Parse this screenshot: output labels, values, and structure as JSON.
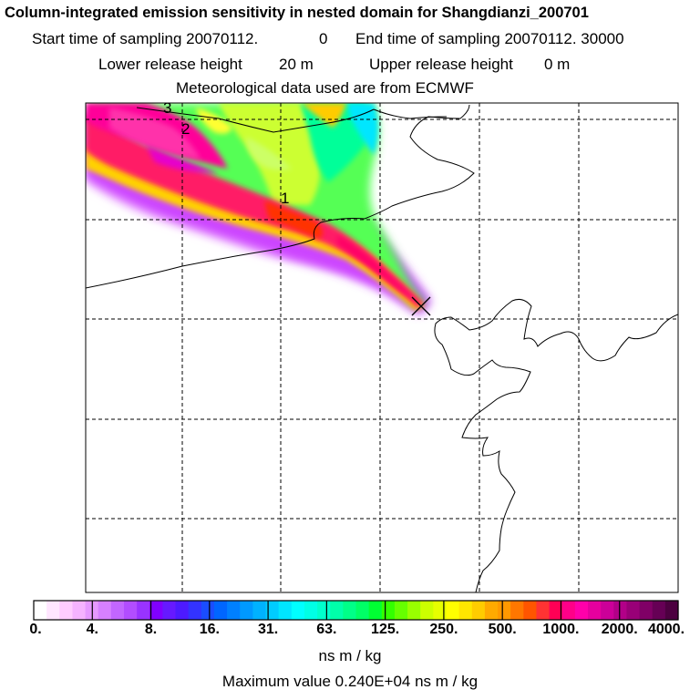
{
  "header": {
    "title": "Column-integrated emission sensitivity in nested domain for Shangdianzi_200701",
    "start_label": "Start time of sampling 20070112.",
    "start_hms": "0",
    "end_label": "End time of sampling 20070112. 30000",
    "lower_label": "Lower release height",
    "lower_value": "20 m",
    "upper_label": "Upper release height",
    "upper_value": "0 m",
    "met_line": "Meteorological data used are from ECMWF"
  },
  "map": {
    "markers": [
      "1",
      "2",
      "3"
    ],
    "receptor_symbol": "✕"
  },
  "colorbar": {
    "tick_labels": [
      "0.",
      "4.",
      "8.",
      "16.",
      "31.",
      "63.",
      "125.",
      "250.",
      "500.",
      "1000.",
      "2000.",
      "4000."
    ],
    "colors": [
      "#ffffff",
      "#ffe6ff",
      "#ffccff",
      "#f5b3ff",
      "#e699ff",
      "#d680ff",
      "#c266ff",
      "#b24dff",
      "#9933ff",
      "#8000ff",
      "#6619ff",
      "#4d1aff",
      "#3333ff",
      "#1a4dff",
      "#0066ff",
      "#0080ff",
      "#0099ff",
      "#00b2ff",
      "#00ccff",
      "#00e6ff",
      "#00ffff",
      "#00ffe6",
      "#00ffcc",
      "#00ffaa",
      "#00ff88",
      "#00ff66",
      "#00ff33",
      "#33ff00",
      "#66ff00",
      "#99ff00",
      "#ccff00",
      "#e6ff00",
      "#ffff00",
      "#ffe600",
      "#ffcc00",
      "#ffaa00",
      "#ff9900",
      "#ff7700",
      "#ff5500",
      "#ff3333",
      "#ff0055",
      "#ff0088",
      "#ff00aa",
      "#e6009e",
      "#cc0099",
      "#b20088",
      "#990077",
      "#800066",
      "#660055",
      "#4d0040"
    ],
    "units": "ns m / kg",
    "max_label": "Maximum value  0.240E+04 ns m / kg"
  }
}
